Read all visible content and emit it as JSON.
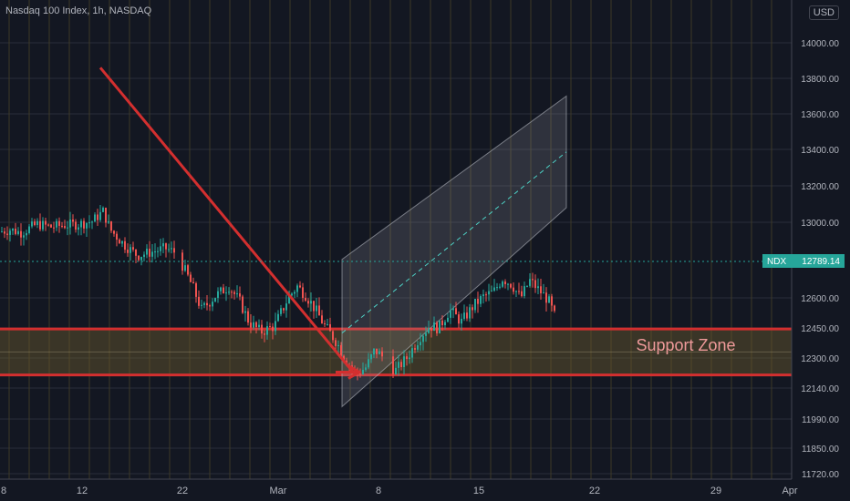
{
  "header": {
    "title": "Nasdaq 100 Index, 1h, NASDAQ",
    "currency": "USD"
  },
  "price_label": {
    "symbol": "NDX",
    "value": "12789.14"
  },
  "annotation": {
    "support_zone": "Support Zone"
  },
  "colors": {
    "background": "#131722",
    "up": "#26a69a",
    "down": "#ef5350",
    "grid": "#2a2e39",
    "vgrid": "#3d3a26",
    "drawing": "#d32f2f",
    "zone_fill": "#6b5a2e",
    "channel_fill": "#9598a1",
    "last_price": "#26a69a",
    "axis_text": "#b2b5be"
  },
  "chart_data": {
    "type": "candlestick",
    "title": "Nasdaq 100 Index, 1h, NASDAQ",
    "y_ticks": [
      "14000.00",
      "13800.00",
      "13600.00",
      "13400.00",
      "13200.00",
      "13000.00",
      "12600.00",
      "12450.00",
      "12300.00",
      "12140.00",
      "11990.00",
      "11850.00",
      "11720.00"
    ],
    "x_ticks": [
      "8",
      "12",
      "22",
      "Mar",
      "8",
      "15",
      "22",
      "29",
      "Apr"
    ],
    "ylim": [
      11720,
      14140
    ],
    "last_price": 12789.14,
    "grid": true,
    "support_zone": {
      "low": 12210,
      "high": 12445,
      "label": "Support Zone"
    },
    "trend_line": {
      "from_price": 13860,
      "to_price": 12220
    },
    "channel": {
      "lower_start": 12050,
      "lower_end": 13080,
      "upper_start": 12800,
      "upper_end": 13700
    },
    "path_points": [
      [
        0,
        12950
      ],
      [
        10,
        12960
      ],
      [
        22,
        12945
      ],
      [
        40,
        12990
      ],
      [
        55,
        12975
      ],
      [
        70,
        12985
      ],
      [
        85,
        12990
      ],
      [
        100,
        13005
      ],
      [
        112,
        13060
      ],
      [
        120,
        12960
      ],
      [
        135,
        12880
      ],
      [
        150,
        12820
      ],
      [
        165,
        12840
      ],
      [
        180,
        12860
      ],
      [
        190,
        12840
      ],
      [
        200,
        12760
      ],
      [
        210,
        12660
      ],
      [
        220,
        12540
      ],
      [
        235,
        12610
      ],
      [
        250,
        12660
      ],
      [
        262,
        12580
      ],
      [
        272,
        12480
      ],
      [
        285,
        12430
      ],
      [
        300,
        12460
      ],
      [
        315,
        12600
      ],
      [
        325,
        12660
      ],
      [
        335,
        12610
      ],
      [
        345,
        12540
      ],
      [
        355,
        12460
      ],
      [
        368,
        12380
      ],
      [
        378,
        12290
      ],
      [
        390,
        12215
      ],
      [
        400,
        12250
      ],
      [
        410,
        12340
      ],
      [
        420,
        12300
      ],
      [
        432,
        12230
      ],
      [
        445,
        12300
      ],
      [
        460,
        12410
      ],
      [
        470,
        12460
      ],
      [
        480,
        12450
      ],
      [
        492,
        12540
      ],
      [
        505,
        12480
      ],
      [
        518,
        12560
      ],
      [
        530,
        12610
      ],
      [
        540,
        12630
      ],
      [
        550,
        12700
      ],
      [
        560,
        12670
      ],
      [
        570,
        12600
      ],
      [
        580,
        12690
      ],
      [
        590,
        12640
      ],
      [
        600,
        12590
      ],
      [
        607,
        12510
      ]
    ]
  }
}
